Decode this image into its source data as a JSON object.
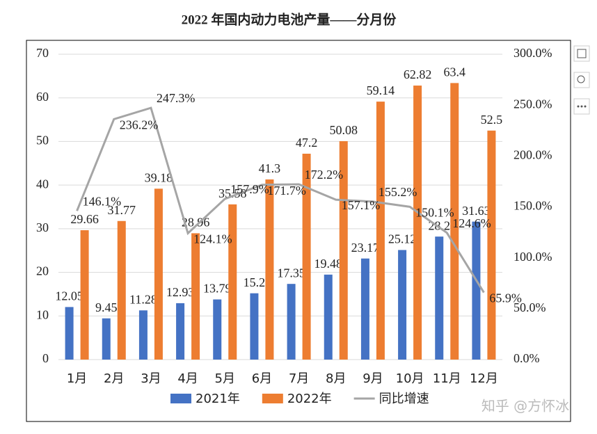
{
  "chart_data": {
    "type": "bar_line",
    "title": "2022 年国内动力电池产量——分月份",
    "categories": [
      "1月",
      "2月",
      "3月",
      "4月",
      "5月",
      "6月",
      "7月",
      "8月",
      "9月",
      "10月",
      "11月",
      "12月"
    ],
    "series": [
      {
        "name": "2021年",
        "type": "bar",
        "color": "#4472c4",
        "values": [
          12.05,
          9.45,
          11.28,
          12.93,
          13.79,
          15.2,
          17.35,
          19.48,
          23.17,
          25.12,
          28.2,
          31.63
        ]
      },
      {
        "name": "2022年",
        "type": "bar",
        "color": "#ed7d31",
        "values": [
          29.66,
          31.77,
          39.18,
          28.96,
          35.58,
          41.3,
          47.2,
          50.08,
          59.14,
          62.82,
          63.4,
          52.5
        ]
      },
      {
        "name": "同比增速",
        "type": "line",
        "axis": "y2",
        "color": "#a5a5a5",
        "values": [
          146.1,
          236.2,
          247.3,
          124.1,
          157.9,
          171.7,
          172.2,
          157.1,
          155.2,
          150.1,
          124.6,
          65.9
        ],
        "value_labels": [
          "146.1%",
          "236.2%",
          "247.3%",
          "124.1%",
          "157.9%",
          "171.7%",
          "172.2%",
          "157.1%",
          "155.2%",
          "150.1%",
          "124.6%",
          "65.9%"
        ]
      }
    ],
    "ylim": [
      0,
      70
    ],
    "yticks": [
      0,
      10,
      20,
      30,
      40,
      50,
      60,
      70
    ],
    "y2lim": [
      0,
      300
    ],
    "y2ticks": [
      {
        "value": 0,
        "label": "0.0%"
      },
      {
        "value": 50,
        "label": "50.0%"
      },
      {
        "value": 100,
        "label": "100.0%"
      },
      {
        "value": 150,
        "label": "150.0%"
      },
      {
        "value": 200,
        "label": "200.0%"
      },
      {
        "value": 250,
        "label": "250.0%"
      },
      {
        "value": 300,
        "label": "300.0%"
      }
    ],
    "watermark": "知乎 @方怀冰"
  }
}
